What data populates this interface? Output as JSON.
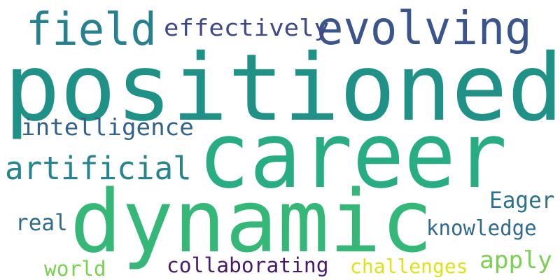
{
  "words": [
    {
      "id": "positioned",
      "text": "positioned",
      "color": "#1f9186"
    },
    {
      "id": "career",
      "text": "career",
      "color": "#27ad81"
    },
    {
      "id": "dynamic",
      "text": "dynamic",
      "color": "#35b778"
    },
    {
      "id": "evolving",
      "text": "evolving",
      "color": "#3a548c"
    },
    {
      "id": "field",
      "text": "field",
      "color": "#27808e"
    },
    {
      "id": "effectively",
      "text": "effectively",
      "color": "#3f4889"
    },
    {
      "id": "intelligence",
      "text": "intelligence",
      "color": "#33638d"
    },
    {
      "id": "artificial",
      "text": "artificial",
      "color": "#25848e"
    },
    {
      "id": "Eager",
      "text": "Eager",
      "color": "#2d708e"
    },
    {
      "id": "real",
      "text": "real",
      "color": "#2f6c8e"
    },
    {
      "id": "knowledge",
      "text": "knowledge",
      "color": "#306a8e"
    },
    {
      "id": "apply",
      "text": "apply",
      "color": "#7ad151"
    },
    {
      "id": "world",
      "text": "world",
      "color": "#7ad151"
    },
    {
      "id": "collaborating",
      "text": "collaborating",
      "color": "#481a6c"
    },
    {
      "id": "challenges",
      "text": "challenges",
      "color": "#dde318"
    }
  ]
}
